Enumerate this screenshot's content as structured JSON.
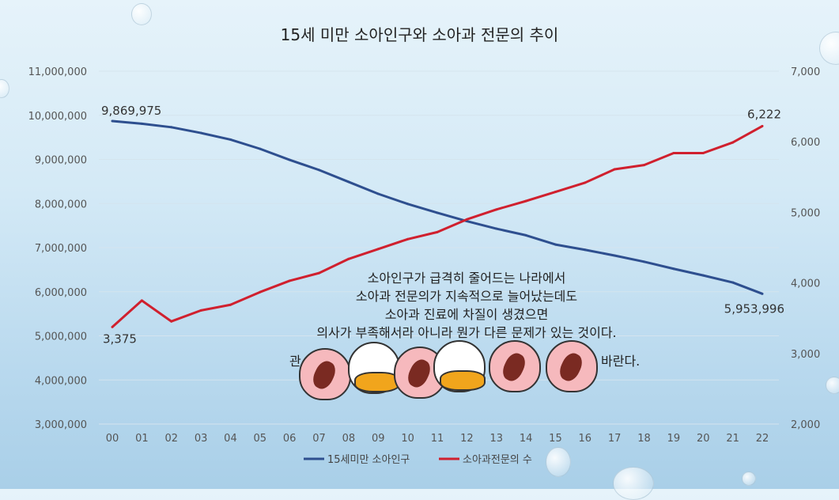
{
  "chart_data": {
    "type": "line",
    "title": "15세 미만 소아인구와 소아과 전문의 추이",
    "categories": [
      "00",
      "01",
      "02",
      "03",
      "04",
      "05",
      "06",
      "07",
      "08",
      "09",
      "10",
      "11",
      "12",
      "13",
      "14",
      "15",
      "16",
      "17",
      "18",
      "19",
      "20",
      "21",
      "22"
    ],
    "y_left": {
      "range": [
        3000000,
        11000000
      ],
      "ticks": [
        "3,000,000",
        "4,000,000",
        "5,000,000",
        "6,000,000",
        "7,000,000",
        "8,000,000",
        "9,000,000",
        "10,000,000",
        "11,000,000"
      ]
    },
    "y_right": {
      "range": [
        2000,
        7000
      ],
      "ticks": [
        "2,000",
        "3,000",
        "4,000",
        "5,000",
        "6,000",
        "7,000"
      ]
    },
    "grid": true,
    "legend_position": "bottom",
    "series": [
      {
        "name": "15세미만 소아인구",
        "axis": "left",
        "color": "#2e4f8f",
        "values": [
          9869975,
          9810000,
          9730000,
          9600000,
          9450000,
          9240000,
          8990000,
          8760000,
          8490000,
          8220000,
          7990000,
          7790000,
          7600000,
          7430000,
          7280000,
          7070000,
          6950000,
          6820000,
          6680000,
          6520000,
          6370000,
          6210000,
          5953996
        ],
        "labels": {
          "first": "9,869,975",
          "last": "5,953,996"
        }
      },
      {
        "name": "소아과전문의 수",
        "axis": "right",
        "color": "#d0202e",
        "values": [
          3375,
          3750,
          3455,
          3610,
          3690,
          3870,
          4030,
          4140,
          4340,
          4480,
          4620,
          4720,
          4900,
          5040,
          5160,
          5290,
          5420,
          5610,
          5670,
          5840,
          5840,
          5990,
          6222
        ],
        "labels": {
          "first": "3,375",
          "last": "6,222"
        }
      }
    ]
  },
  "annotation": {
    "lines": [
      "소아인구가 급격히 줄어드는 나라에서",
      "소아과 전문의가 지속적으로 늘어났는데도",
      "소아과 진료에 차질이 생겼으면",
      "의사가 부족해서라 아니라 뭔가 다른 문제가 있는 것이다."
    ],
    "obscured_fragment_left": "관",
    "obscured_fragment_right": "바란다."
  }
}
